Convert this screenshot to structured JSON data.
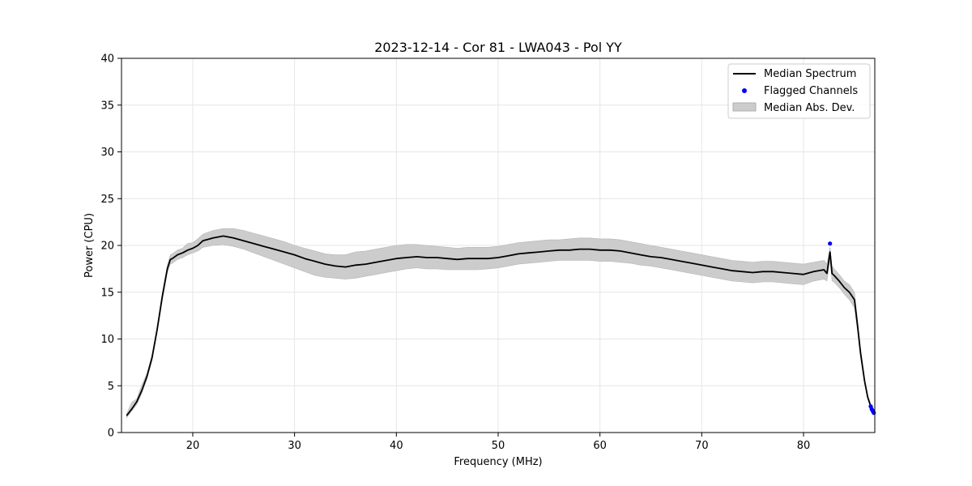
{
  "chart_data": {
    "type": "line",
    "title": "2023-12-14 - Cor 81 - LWA043 - Pol YY",
    "xlabel": "Frequency (MHz)",
    "ylabel": "Power (CPU)",
    "xlim": [
      13,
      87
    ],
    "ylim": [
      0,
      40
    ],
    "xticks": [
      20,
      30,
      40,
      50,
      60,
      70,
      80
    ],
    "yticks": [
      0,
      5,
      10,
      15,
      20,
      25,
      30,
      35,
      40
    ],
    "grid": true,
    "legend_position": "top-right",
    "series": [
      {
        "name": "Median Spectrum",
        "kind": "line",
        "color": "#000000",
        "x": [
          13.5,
          14.0,
          14.5,
          15.0,
          15.5,
          16.0,
          16.5,
          17.0,
          17.5,
          17.8,
          18.0,
          18.5,
          19.0,
          19.5,
          20.0,
          20.5,
          21.0,
          22.0,
          23.0,
          24.0,
          25.0,
          26.0,
          27.0,
          28.0,
          29.0,
          30.0,
          31.0,
          32.0,
          33.0,
          34.0,
          35.0,
          36.0,
          37.0,
          38.0,
          39.0,
          40.0,
          41.0,
          42.0,
          43.0,
          44.0,
          45.0,
          46.0,
          47.0,
          48.0,
          49.0,
          50.0,
          51.0,
          52.0,
          53.0,
          54.0,
          55.0,
          56.0,
          57.0,
          58.0,
          59.0,
          60.0,
          61.0,
          62.0,
          63.0,
          64.0,
          65.0,
          66.0,
          67.0,
          68.0,
          69.0,
          70.0,
          71.0,
          72.0,
          73.0,
          74.0,
          75.0,
          76.0,
          77.0,
          78.0,
          79.0,
          80.0,
          81.0,
          82.0,
          82.3,
          82.6,
          82.8,
          83.0,
          83.5,
          84.0,
          84.5,
          85.0,
          85.3,
          85.6,
          86.0,
          86.3,
          86.6,
          86.9
        ],
        "values": [
          1.8,
          2.5,
          3.3,
          4.5,
          6.0,
          8.0,
          11.0,
          14.5,
          17.5,
          18.5,
          18.6,
          19.0,
          19.2,
          19.5,
          19.7,
          20.0,
          20.5,
          20.8,
          21.0,
          20.8,
          20.5,
          20.2,
          19.9,
          19.6,
          19.3,
          19.0,
          18.6,
          18.3,
          18.0,
          17.8,
          17.7,
          17.9,
          18.0,
          18.2,
          18.4,
          18.6,
          18.7,
          18.8,
          18.7,
          18.7,
          18.6,
          18.5,
          18.6,
          18.6,
          18.6,
          18.7,
          18.9,
          19.1,
          19.2,
          19.3,
          19.4,
          19.5,
          19.5,
          19.6,
          19.6,
          19.5,
          19.5,
          19.4,
          19.2,
          19.0,
          18.8,
          18.7,
          18.5,
          18.3,
          18.1,
          17.9,
          17.7,
          17.5,
          17.3,
          17.2,
          17.1,
          17.2,
          17.2,
          17.1,
          17.0,
          16.9,
          17.2,
          17.4,
          17.0,
          19.3,
          17.0,
          16.8,
          16.2,
          15.5,
          15.0,
          14.2,
          11.5,
          8.5,
          5.5,
          3.8,
          2.8,
          2.1
        ]
      },
      {
        "name": "Flagged Channels",
        "kind": "scatter",
        "color": "#0000ff",
        "x": [
          82.6,
          86.6,
          86.7,
          86.8,
          86.9
        ],
        "values": [
          20.2,
          2.8,
          2.5,
          2.3,
          2.1
        ]
      },
      {
        "name": "Median Abs. Dev.",
        "kind": "band",
        "color": "#cccccc",
        "x": [
          13.5,
          14.0,
          14.5,
          15.0,
          15.5,
          16.0,
          16.5,
          17.0,
          17.5,
          17.8,
          18.0,
          18.5,
          19.0,
          19.5,
          20.0,
          20.5,
          21.0,
          22.0,
          23.0,
          24.0,
          25.0,
          26.0,
          27.0,
          28.0,
          29.0,
          30.0,
          31.0,
          32.0,
          33.0,
          34.0,
          35.0,
          36.0,
          37.0,
          38.0,
          39.0,
          40.0,
          41.0,
          42.0,
          43.0,
          44.0,
          45.0,
          46.0,
          47.0,
          48.0,
          49.0,
          50.0,
          51.0,
          52.0,
          53.0,
          54.0,
          55.0,
          56.0,
          57.0,
          58.0,
          59.0,
          60.0,
          61.0,
          62.0,
          63.0,
          64.0,
          65.0,
          66.0,
          67.0,
          68.0,
          69.0,
          70.0,
          71.0,
          72.0,
          73.0,
          74.0,
          75.0,
          76.0,
          77.0,
          78.0,
          79.0,
          80.0,
          81.0,
          82.0,
          82.3,
          82.6,
          82.8,
          83.0,
          83.5,
          84.0,
          84.5,
          85.0,
          85.3,
          85.6,
          86.0,
          86.3,
          86.6,
          86.9
        ],
        "lower": [
          1.6,
          2.3,
          3.0,
          4.2,
          5.7,
          7.7,
          10.7,
          14.1,
          17.1,
          18.0,
          18.1,
          18.5,
          18.7,
          19.0,
          19.2,
          19.4,
          19.8,
          20.0,
          20.1,
          19.9,
          19.6,
          19.2,
          18.8,
          18.4,
          18.0,
          17.6,
          17.2,
          16.8,
          16.6,
          16.5,
          16.4,
          16.5,
          16.7,
          16.9,
          17.1,
          17.3,
          17.5,
          17.6,
          17.5,
          17.5,
          17.4,
          17.4,
          17.4,
          17.4,
          17.5,
          17.6,
          17.8,
          18.0,
          18.1,
          18.2,
          18.3,
          18.4,
          18.4,
          18.4,
          18.4,
          18.3,
          18.3,
          18.2,
          18.1,
          17.9,
          17.8,
          17.6,
          17.4,
          17.2,
          17.0,
          16.8,
          16.6,
          16.4,
          16.2,
          16.1,
          16.0,
          16.1,
          16.1,
          16.0,
          15.9,
          15.8,
          16.2,
          16.4,
          16.2,
          18.5,
          16.2,
          16.1,
          15.5,
          14.8,
          14.2,
          13.3,
          10.9,
          8.0,
          5.2,
          3.6,
          2.6,
          2.0
        ],
        "upper": [
          2.0,
          3.2,
          3.6,
          5.1,
          6.3,
          8.3,
          11.3,
          14.9,
          17.9,
          19.0,
          19.1,
          19.5,
          19.7,
          20.2,
          20.3,
          20.7,
          21.2,
          21.6,
          21.8,
          21.8,
          21.6,
          21.3,
          21.0,
          20.7,
          20.4,
          20.0,
          19.7,
          19.4,
          19.1,
          19.0,
          19.0,
          19.3,
          19.4,
          19.6,
          19.8,
          20.0,
          20.1,
          20.1,
          20.0,
          19.9,
          19.8,
          19.7,
          19.8,
          19.8,
          19.8,
          19.9,
          20.1,
          20.3,
          20.4,
          20.5,
          20.6,
          20.6,
          20.7,
          20.8,
          20.8,
          20.7,
          20.7,
          20.6,
          20.4,
          20.2,
          20.0,
          19.8,
          19.6,
          19.4,
          19.2,
          19.0,
          18.8,
          18.6,
          18.4,
          18.3,
          18.2,
          18.3,
          18.3,
          18.2,
          18.1,
          18.0,
          18.2,
          18.4,
          18.0,
          19.8,
          17.8,
          17.5,
          16.9,
          16.2,
          15.8,
          15.0,
          12.1,
          9.0,
          5.8,
          4.0,
          3.0,
          2.3
        ]
      }
    ]
  }
}
